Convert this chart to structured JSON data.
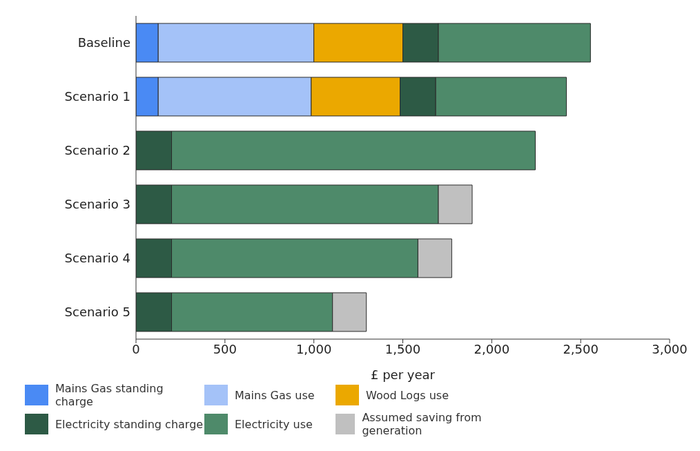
{
  "chart_data": {
    "type": "bar",
    "orientation": "horizontal",
    "stacked": true,
    "xlabel": "£ per year",
    "categories": [
      "Baseline",
      "Scenario 1",
      "Scenario 2",
      "Scenario 3",
      "Scenario 4",
      "Scenario 5"
    ],
    "series": [
      {
        "name": "Mains Gas standing charge",
        "color": "#4a8af4",
        "values": [
          125,
          125,
          null,
          null,
          null,
          null
        ]
      },
      {
        "name": "Mains Gas use",
        "color": "#a4c2f8",
        "values": [
          875,
          860,
          null,
          null,
          null,
          null
        ]
      },
      {
        "name": "Wood Logs use",
        "color": "#eba800",
        "values": [
          500,
          500,
          null,
          null,
          null,
          null
        ]
      },
      {
        "name": "Electricity standing charge",
        "color": "#2d5a45",
        "values": [
          200,
          200,
          200,
          200,
          200,
          200
        ]
      },
      {
        "name": "Electricity use",
        "color": "#4e8a6a",
        "values": [
          855,
          735,
          2045,
          1500,
          1385,
          905
        ]
      },
      {
        "name": "Assumed saving from generation",
        "color": "#c0c0c0",
        "values": [
          null,
          null,
          null,
          190,
          190,
          190
        ]
      }
    ],
    "xlim": [
      0,
      3000
    ],
    "xticks": [
      0,
      {
        "value": 500,
        "label": "500"
      },
      {
        "value": 1000,
        "label": "1,000"
      },
      {
        "value": 1500,
        "label": "1,500"
      },
      {
        "value": 2000,
        "label": "2,000"
      },
      {
        "value": 2500,
        "label": "2,500"
      },
      {
        "value": 3000,
        "label": "3,000"
      }
    ],
    "grid": false,
    "legend": "bottom"
  }
}
